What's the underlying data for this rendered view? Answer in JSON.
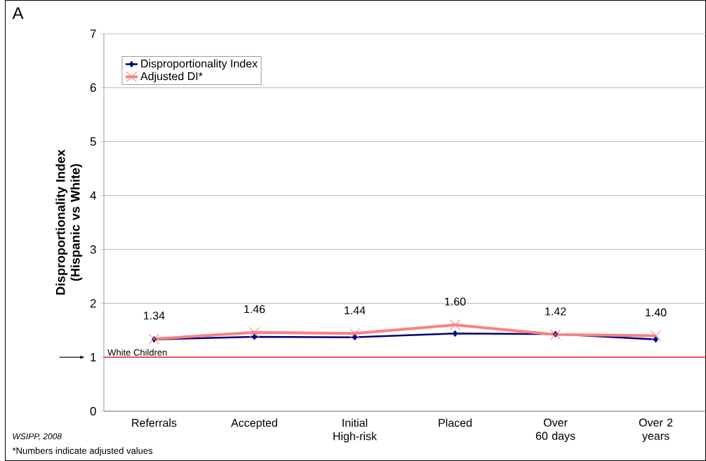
{
  "chart_data": {
    "type": "line",
    "title": "A",
    "ylabel": "Disproportionality Index (Hispanic vs White)",
    "categories": [
      "Referrals",
      "Accepted",
      "Initial High-risk",
      "Placed",
      "Over 60 days",
      "Over 2 years"
    ],
    "series": [
      {
        "name": "Disproportionality Index",
        "color": "#000080",
        "marker": "diamond",
        "values": [
          1.33,
          1.38,
          1.37,
          1.44,
          1.43,
          1.33
        ]
      },
      {
        "name": "Adjusted DI*",
        "color": "#ff8080",
        "marker": "cross",
        "values": [
          1.34,
          1.46,
          1.44,
          1.6,
          1.42,
          1.4
        ],
        "value_labels": [
          "1.34",
          "1.46",
          "1.44",
          "1.60",
          "1.42",
          "1.40"
        ]
      }
    ],
    "ylim": [
      0,
      7
    ],
    "yticks": [
      0,
      1,
      2,
      3,
      4,
      5,
      6,
      7
    ],
    "grid": "y",
    "legend": "top left",
    "ref_lines": [
      {
        "axis": "y",
        "value": 1,
        "label": "White Children",
        "color": "#ff0000"
      }
    ],
    "annotations": [
      "WSIPP, 2008",
      "*Numbers indicate adjusted values"
    ]
  }
}
